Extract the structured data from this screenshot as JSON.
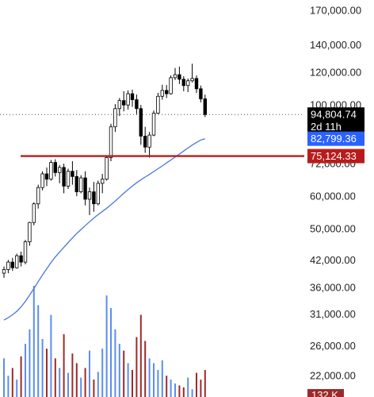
{
  "chart_data": {
    "type": "candlestick",
    "y_scale": "log",
    "ylim": [
      19500,
      180000
    ],
    "price_ticks": [
      {
        "value": 170000,
        "label": "170,000.00"
      },
      {
        "value": 140000,
        "label": "140,000.00"
      },
      {
        "value": 120000,
        "label": "120,000.00"
      },
      {
        "value": 100000,
        "label": "100,000.00"
      },
      {
        "value": 72000,
        "label": "72,000.00"
      },
      {
        "value": 60000,
        "label": "60,000.00"
      },
      {
        "value": 50000,
        "label": "50,000.00"
      },
      {
        "value": 42000,
        "label": "42,000.00"
      },
      {
        "value": 36000,
        "label": "36,000.00"
      },
      {
        "value": 31000,
        "label": "31,000.00"
      },
      {
        "value": 26000,
        "label": "26,000.00"
      },
      {
        "value": 22000,
        "label": "22,000.00"
      }
    ],
    "price_labels": {
      "last": {
        "value": 94804.74,
        "text": "94,804.74",
        "countdown": "2d 11h",
        "color": "#000000"
      },
      "moving_average": {
        "value": 82799.36,
        "text": "82,799.36",
        "color": "#2962ff"
      },
      "level": {
        "value": 75124.33,
        "text": "75,124.33",
        "color": "#b71c1c"
      }
    },
    "volume_label": "132 K",
    "horizontal_level": {
      "value": 75124.33,
      "color": "#b71c1c"
    },
    "moving_average_color": "#4a76d8",
    "up_color": "#000000",
    "down_color": "#000000",
    "volume_up_color": "#5b8def",
    "volume_down_color": "#9c2a2a",
    "candles": [
      [
        39000,
        40500,
        38000,
        39800
      ],
      [
        39800,
        42000,
        39000,
        41500
      ],
      [
        41500,
        42500,
        39500,
        40200
      ],
      [
        40200,
        43500,
        40000,
        43000
      ],
      [
        43000,
        44000,
        40500,
        41500
      ],
      [
        41500,
        47000,
        41000,
        46500
      ],
      [
        46500,
        52000,
        45500,
        51800
      ],
      [
        51800,
        58000,
        51000,
        57500
      ],
      [
        57500,
        64000,
        56000,
        63000
      ],
      [
        63000,
        69000,
        62000,
        68000
      ],
      [
        68000,
        70500,
        63500,
        66000
      ],
      [
        66000,
        73500,
        65500,
        72500
      ],
      [
        72500,
        73800,
        67000,
        68500
      ],
      [
        68500,
        71500,
        64500,
        70500
      ],
      [
        70500,
        72000,
        61000,
        63500
      ],
      [
        63500,
        70000,
        62500,
        69000
      ],
      [
        69000,
        73000,
        64000,
        67000
      ],
      [
        67000,
        69500,
        60000,
        61500
      ],
      [
        61500,
        67500,
        61000,
        66500
      ],
      [
        66500,
        69000,
        57000,
        59000
      ],
      [
        59000,
        63000,
        54000,
        61500
      ],
      [
        61500,
        65000,
        55000,
        57500
      ],
      [
        57500,
        65500,
        57000,
        64500
      ],
      [
        64500,
        68000,
        61000,
        66000
      ],
      [
        66000,
        75000,
        65500,
        74500
      ],
      [
        74500,
        90000,
        73000,
        88500
      ],
      [
        88500,
        100500,
        86000,
        98000
      ],
      [
        98000,
        104000,
        94000,
        102500
      ],
      [
        102500,
        108000,
        96500,
        100000
      ],
      [
        100000,
        108500,
        97500,
        106500
      ],
      [
        106500,
        109000,
        99000,
        103000
      ],
      [
        103000,
        106000,
        95000,
        98000
      ],
      [
        98000,
        100000,
        80000,
        84000
      ],
      [
        84000,
        88500,
        76500,
        79000
      ],
      [
        79000,
        86000,
        74500,
        84500
      ],
      [
        84500,
        97000,
        84000,
        95500
      ],
      [
        95500,
        107000,
        95000,
        105000
      ],
      [
        105000,
        112000,
        103000,
        108500
      ],
      [
        108500,
        111800,
        104000,
        106500
      ],
      [
        106500,
        118000,
        106000,
        116500
      ],
      [
        116500,
        123000,
        115000,
        118500
      ],
      [
        118500,
        124000,
        112500,
        115500
      ],
      [
        115500,
        117500,
        108000,
        111500
      ],
      [
        111500,
        116000,
        107500,
        114500
      ],
      [
        114500,
        126000,
        113500,
        116000
      ],
      [
        116000,
        118000,
        107000,
        109500
      ],
      [
        109500,
        111500,
        101500,
        103500
      ],
      [
        103500,
        106000,
        93500,
        94804.74
      ]
    ],
    "moving_average": [
      30000,
      30400,
      30900,
      31500,
      32300,
      33300,
      34500,
      35800,
      37200,
      38600,
      40000,
      41400,
      42700,
      43900,
      45100,
      46300,
      47500,
      48700,
      49800,
      50900,
      52000,
      53100,
      54100,
      55100,
      56100,
      57200,
      58400,
      59700,
      61000,
      62300,
      63500,
      64700,
      65800,
      66800,
      67800,
      68900,
      70000,
      71100,
      72300,
      73500,
      74700,
      76000,
      77300,
      78600,
      79900,
      81100,
      82200,
      82799.36
    ],
    "volumes": [
      40,
      22,
      30,
      18,
      42,
      55,
      70,
      115,
      95,
      60,
      50,
      85,
      40,
      30,
      65,
      25,
      45,
      35,
      20,
      30,
      48,
      18,
      26,
      50,
      105,
      92,
      70,
      55,
      48,
      35,
      28,
      62,
      85,
      58,
      40,
      35,
      28,
      38,
      22,
      18,
      14,
      12,
      10,
      20,
      8,
      25,
      18,
      28
    ]
  }
}
